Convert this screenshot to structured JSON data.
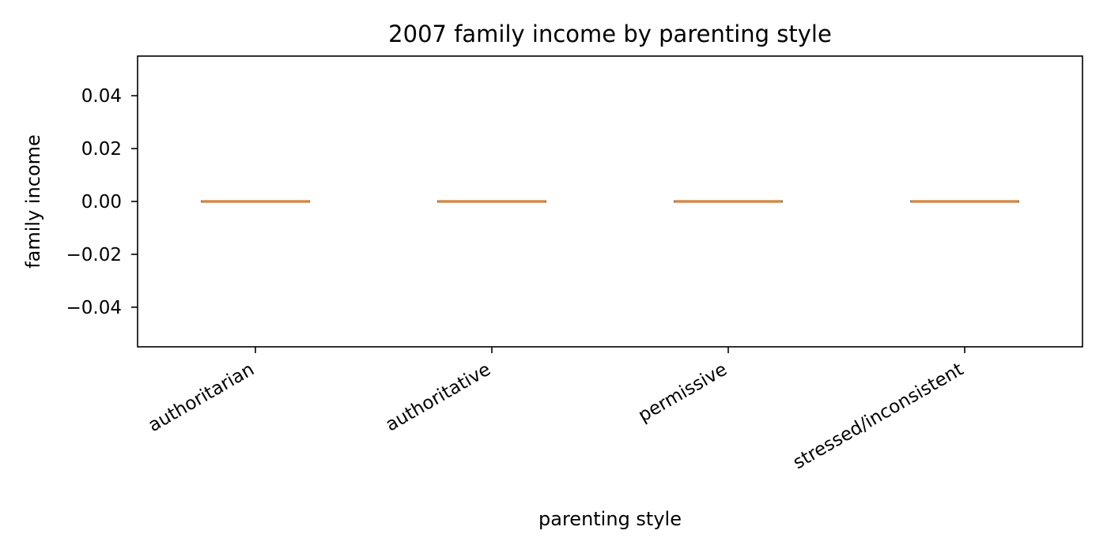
{
  "chart_data": {
    "type": "box",
    "title": "2007 family income by parenting style",
    "xlabel": "parenting style",
    "ylabel": "family income",
    "categories": [
      "authoritarian",
      "authoritative",
      "permissive",
      "stressed/inconsistent"
    ],
    "series": [
      {
        "values": [
          {
            "min": 0,
            "q1": 0,
            "median": 0,
            "q3": 0,
            "max": 0
          },
          {
            "min": 0,
            "q1": 0,
            "median": 0,
            "q3": 0,
            "max": 0
          },
          {
            "min": 0,
            "q1": 0,
            "median": 0,
            "q3": 0,
            "max": 0
          },
          {
            "min": 0,
            "q1": 0,
            "median": 0,
            "q3": 0,
            "max": 0
          }
        ]
      }
    ],
    "ylim": [
      -0.055,
      0.055
    ],
    "yticks": [
      "−0.04",
      "−0.02",
      "0.00",
      "0.02",
      "0.04"
    ],
    "ytick_values": [
      -0.04,
      -0.02,
      0.0,
      0.02,
      0.04
    ],
    "grid": false,
    "colors": {
      "median": "#ff7f0e",
      "box_edge": "#000000",
      "axis": "#000000"
    }
  }
}
